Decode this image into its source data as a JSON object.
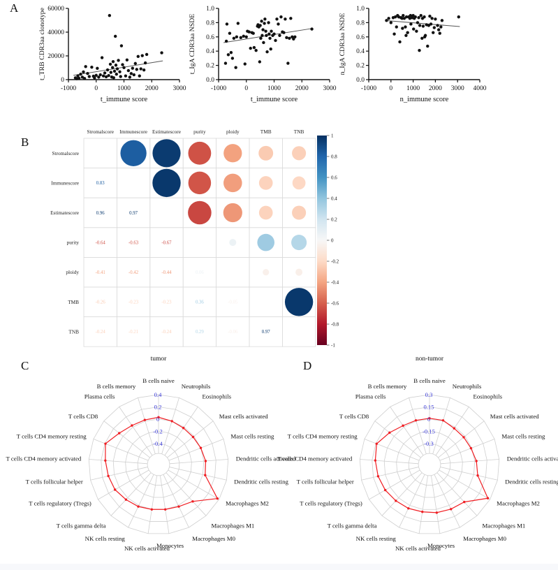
{
  "panel_letters": {
    "a": "A",
    "b": "B",
    "c": "C",
    "d": "D"
  },
  "colors": {
    "scatter_point": "#111111",
    "trend_line": "#555555",
    "radar_polygon": "#f01e23",
    "radar_tick_label": "#3939d9",
    "radar_grid": "#cfcfcf",
    "corr_grid": "#dbdbdb"
  },
  "chart_data": [
    {
      "type": "scatter",
      "panel": "A",
      "xlabel": "t_immune score",
      "ylabel": "t_TRB CDR3aa clonotype",
      "xlim": [
        -1000,
        3000
      ],
      "ylim": [
        0,
        60000
      ],
      "xticks": [
        -1000,
        0,
        1000,
        2000,
        3000
      ],
      "xticklabels": [
        "-1000",
        "0",
        "1000",
        "2000",
        "3000"
      ],
      "yticks": [
        0,
        20000,
        40000,
        60000
      ],
      "yticklabels": [
        "0",
        "20000",
        "40000",
        "60000"
      ],
      "trend": [
        [
          -820,
          3600
        ],
        [
          2400,
          15800
        ]
      ],
      "points": [
        [
          -750,
          1500
        ],
        [
          -700,
          800
        ],
        [
          -660,
          3200
        ],
        [
          -620,
          1100
        ],
        [
          -560,
          4600
        ],
        [
          -500,
          2100
        ],
        [
          -460,
          6500
        ],
        [
          -420,
          1000
        ],
        [
          -380,
          11000
        ],
        [
          -310,
          5200
        ],
        [
          -250,
          2600
        ],
        [
          -160,
          10500
        ],
        [
          -100,
          2900
        ],
        [
          -60,
          1400
        ],
        [
          0,
          3600
        ],
        [
          40,
          9500
        ],
        [
          90,
          2100
        ],
        [
          150,
          4100
        ],
        [
          210,
          18500
        ],
        [
          260,
          3100
        ],
        [
          310,
          5600
        ],
        [
          360,
          2400
        ],
        [
          410,
          8200
        ],
        [
          450,
          3400
        ],
        [
          480,
          54000
        ],
        [
          510,
          13000
        ],
        [
          530,
          6100
        ],
        [
          560,
          2200
        ],
        [
          590,
          10200
        ],
        [
          610,
          15200
        ],
        [
          630,
          1600
        ],
        [
          660,
          7100
        ],
        [
          690,
          36500
        ],
        [
          710,
          12200
        ],
        [
          730,
          4600
        ],
        [
          760,
          9100
        ],
        [
          800,
          16200
        ],
        [
          850,
          6600
        ],
        [
          880,
          2600
        ],
        [
          910,
          28500
        ],
        [
          950,
          12600
        ],
        [
          1000,
          10100
        ],
        [
          1060,
          3100
        ],
        [
          1110,
          16600
        ],
        [
          1160,
          7600
        ],
        [
          1210,
          2100
        ],
        [
          1260,
          5100
        ],
        [
          1310,
          9600
        ],
        [
          1360,
          4100
        ],
        [
          1410,
          13600
        ],
        [
          1460,
          8600
        ],
        [
          1510,
          19500
        ],
        [
          1560,
          3100
        ],
        [
          1610,
          9100
        ],
        [
          1660,
          20200
        ],
        [
          1720,
          8100
        ],
        [
          1770,
          14100
        ],
        [
          1820,
          21200
        ],
        [
          2360,
          22600
        ]
      ]
    },
    {
      "type": "scatter",
      "panel": "A",
      "xlabel": "t_immune score",
      "ylabel": "t_IgA CDR3aa NSDE",
      "xlim": [
        -1000,
        3000
      ],
      "ylim": [
        0,
        1.0
      ],
      "xticks": [
        -1000,
        0,
        1000,
        2000,
        3000
      ],
      "xticklabels": [
        "-1000",
        "0",
        "1000",
        "2000",
        "3000"
      ],
      "yticks": [
        0,
        0.2,
        0.4,
        0.6,
        0.8,
        1.0
      ],
      "yticklabels": [
        "0.0",
        "0.2",
        "0.4",
        "0.6",
        "0.8",
        "1.0"
      ],
      "trend": [
        [
          -820,
          0.52
        ],
        [
          2400,
          0.72
        ]
      ],
      "points": [
        [
          -750,
          0.23
        ],
        [
          -720,
          0.54
        ],
        [
          -700,
          0.78
        ],
        [
          -650,
          0.35
        ],
        [
          -600,
          0.65
        ],
        [
          -550,
          0.38
        ],
        [
          -500,
          0.3
        ],
        [
          -450,
          0.58
        ],
        [
          -380,
          0.17
        ],
        [
          -350,
          0.6
        ],
        [
          -300,
          0.79
        ],
        [
          -200,
          0.59
        ],
        [
          -100,
          0.61
        ],
        [
          -50,
          0.22
        ],
        [
          0,
          0.6
        ],
        [
          40,
          0.68
        ],
        [
          100,
          0.67
        ],
        [
          150,
          0.44
        ],
        [
          200,
          0.66
        ],
        [
          250,
          0.65
        ],
        [
          280,
          0.45
        ],
        [
          350,
          0.41
        ],
        [
          400,
          0.75
        ],
        [
          420,
          0.77
        ],
        [
          450,
          0.74
        ],
        [
          480,
          0.25
        ],
        [
          500,
          0.76
        ],
        [
          520,
          0.58
        ],
        [
          550,
          0.82
        ],
        [
          570,
          0.62
        ],
        [
          600,
          0.7
        ],
        [
          620,
          0.52
        ],
        [
          650,
          0.79
        ],
        [
          670,
          0.85
        ],
        [
          700,
          0.68
        ],
        [
          720,
          0.62
        ],
        [
          750,
          0.39
        ],
        [
          800,
          0.8
        ],
        [
          820,
          0.64
        ],
        [
          850,
          0.58
        ],
        [
          880,
          0.43
        ],
        [
          900,
          0.68
        ],
        [
          950,
          0.62
        ],
        [
          1000,
          0.64
        ],
        [
          1050,
          0.55
        ],
        [
          1100,
          0.85
        ],
        [
          1150,
          0.78
        ],
        [
          1200,
          0.62
        ],
        [
          1250,
          0.88
        ],
        [
          1300,
          0.67
        ],
        [
          1350,
          0.66
        ],
        [
          1400,
          0.85
        ],
        [
          1450,
          0.59
        ],
        [
          1500,
          0.23
        ],
        [
          1550,
          0.58
        ],
        [
          1600,
          0.86
        ],
        [
          1650,
          0.6
        ],
        [
          1700,
          0.57
        ],
        [
          1750,
          0.6
        ],
        [
          2360,
          0.71
        ]
      ]
    },
    {
      "type": "scatter",
      "panel": "A",
      "xlabel": "n_immune score",
      "ylabel": "n_IgA CDR3aa NSDE",
      "xlim": [
        -1000,
        4000
      ],
      "ylim": [
        0,
        1.0
      ],
      "xticks": [
        -1000,
        0,
        1000,
        2000,
        3000,
        4000
      ],
      "xticklabels": [
        "-1000",
        "0",
        "1000",
        "2000",
        "3000",
        "4000"
      ],
      "yticks": [
        0,
        0.2,
        0.4,
        0.6,
        0.8,
        1.0
      ],
      "yticklabels": [
        "0.0",
        "0.2",
        "0.4",
        "0.6",
        "0.8",
        "1.0"
      ],
      "trend": [
        [
          -250,
          0.83
        ],
        [
          3100,
          0.745
        ]
      ],
      "points": [
        [
          -200,
          0.83
        ],
        [
          -100,
          0.86
        ],
        [
          0,
          0.8
        ],
        [
          100,
          0.87
        ],
        [
          150,
          0.64
        ],
        [
          200,
          0.88
        ],
        [
          250,
          0.74
        ],
        [
          300,
          0.9
        ],
        [
          350,
          0.88
        ],
        [
          400,
          0.53
        ],
        [
          450,
          0.87
        ],
        [
          500,
          0.86
        ],
        [
          520,
          0.72
        ],
        [
          550,
          0.9
        ],
        [
          600,
          0.86
        ],
        [
          650,
          0.74
        ],
        [
          680,
          0.62
        ],
        [
          700,
          0.88
        ],
        [
          750,
          0.66
        ],
        [
          800,
          0.88
        ],
        [
          850,
          0.86
        ],
        [
          880,
          0.9
        ],
        [
          900,
          0.78
        ],
        [
          950,
          0.87
        ],
        [
          1000,
          0.9
        ],
        [
          1020,
          0.71
        ],
        [
          1050,
          0.86
        ],
        [
          1100,
          0.88
        ],
        [
          1150,
          0.68
        ],
        [
          1200,
          0.8
        ],
        [
          1250,
          0.87
        ],
        [
          1280,
          0.41
        ],
        [
          1300,
          0.76
        ],
        [
          1350,
          0.9
        ],
        [
          1400,
          0.58
        ],
        [
          1420,
          0.86
        ],
        [
          1450,
          0.75
        ],
        [
          1500,
          0.88
        ],
        [
          1520,
          0.6
        ],
        [
          1550,
          0.62
        ],
        [
          1600,
          0.77
        ],
        [
          1650,
          0.47
        ],
        [
          1700,
          0.76
        ],
        [
          1750,
          0.89
        ],
        [
          1800,
          0.78
        ],
        [
          1850,
          0.86
        ],
        [
          1900,
          0.66
        ],
        [
          1950,
          0.73
        ],
        [
          2000,
          0.85
        ],
        [
          2100,
          0.76
        ],
        [
          2150,
          0.7
        ],
        [
          2200,
          0.65
        ],
        [
          2250,
          0.74
        ],
        [
          2300,
          0.83
        ],
        [
          3050,
          0.88
        ]
      ]
    },
    {
      "type": "heatmap",
      "style": "correlation-circles",
      "panel": "B",
      "variables": [
        "Stromalscore",
        "Immunescore",
        "Estimatescore",
        "purity",
        "ploidy",
        "TMB",
        "TNB"
      ],
      "matrix": [
        [
          null,
          0.83,
          0.96,
          -0.64,
          -0.41,
          -0.26,
          -0.24
        ],
        [
          0.83,
          null,
          0.97,
          -0.63,
          -0.42,
          -0.23,
          -0.21
        ],
        [
          0.96,
          0.97,
          null,
          -0.67,
          -0.44,
          -0.23,
          -0.24
        ],
        [
          -0.64,
          -0.63,
          -0.67,
          null,
          0.06,
          0.36,
          0.29
        ],
        [
          -0.41,
          -0.42,
          -0.44,
          0.06,
          null,
          -0.05,
          -0.06
        ],
        [
          -0.26,
          -0.23,
          -0.23,
          0.36,
          -0.05,
          null,
          0.97
        ],
        [
          -0.24,
          -0.21,
          -0.24,
          0.29,
          -0.06,
          0.97,
          null
        ]
      ],
      "colormap": "RdBu",
      "colorbar_ticks": [
        "1",
        "0.8",
        "0.6",
        "0.4",
        "0.2",
        "0",
        "-0.2",
        "-0.4",
        "-0.6",
        "-0.8",
        "-1"
      ]
    },
    {
      "type": "radar",
      "panel": "C",
      "title": "tumor",
      "categories": [
        "B cells naive",
        "Neutrophils",
        "Eosinophils",
        "Mast cells activated",
        "Mast cells resting",
        "Dendritic cells activated",
        "Dendritic cells resting",
        "Macrophages M2",
        "Macrophages M1",
        "Macrophages M0",
        "Monocytes",
        "NK cells activated",
        "NK cells resting",
        "T cells gamma delta",
        "T cells regulatory (Tregs)",
        "T cells follicular helper",
        "T cells CD4 memory activated",
        "T cells CD4 memory resting",
        "T cells CD8",
        "Plasma cells",
        "B cells memory"
      ],
      "values": [
        0.03,
        0.0,
        -0.02,
        -0.02,
        0.0,
        0.03,
        0.04,
        0.37,
        0.08,
        0.02,
        0.0,
        0.0,
        0.02,
        0.04,
        0.08,
        0.1,
        0.13,
        0.19,
        0.08,
        0.03,
        0.02
      ],
      "rings": [
        0.4,
        0.2,
        0,
        -0.2,
        -0.4
      ],
      "ring_labels": [
        "0.4",
        "0.2",
        "0",
        "-0.2",
        "-0.4"
      ]
    },
    {
      "type": "radar",
      "panel": "D",
      "title": "non-tumor",
      "categories": [
        "B cells naive",
        "Neutrophils",
        "Eosinophils",
        "Mast cells activated",
        "Mast cells resting",
        "Dendritic cells activated",
        "Dendritic cells resting",
        "Macrophages M2",
        "Macrophages M1",
        "Macrophages M0",
        "Monocytes",
        "NK cells activated",
        "NK cells resting",
        "T cells gamma delta",
        "T cells regulatory (Tregs)",
        "T cells follicular helper",
        "T cells CD4 memory activated",
        "T cells CD4 memory resting",
        "T cells CD8",
        "Plasma cells",
        "B cells memory"
      ],
      "values": [
        0.01,
        0.01,
        -0.02,
        -0.02,
        -0.01,
        0.02,
        0.05,
        0.27,
        0.07,
        0.05,
        0.04,
        0.03,
        0.04,
        0.05,
        0.07,
        0.09,
        0.11,
        0.14,
        0.07,
        0.02,
        0.01
      ],
      "rings": [
        0.3,
        0.15,
        0,
        -0.15,
        -0.3
      ],
      "ring_labels": [
        "0.3",
        "0.15",
        "0",
        "-0.15",
        "-0.3"
      ]
    }
  ]
}
